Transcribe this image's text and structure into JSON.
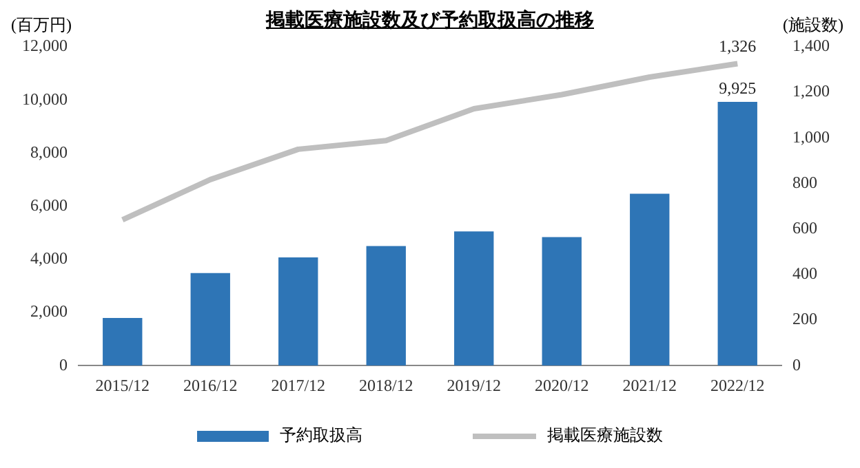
{
  "chart_data": {
    "type": "bar",
    "title": "掲載医療施設数及び予約取扱高の推移",
    "ylabel": "(百万円)",
    "y2label": "(施設数)",
    "categories": [
      "2015/12",
      "2016/12",
      "2017/12",
      "2018/12",
      "2019/12",
      "2020/12",
      "2021/12",
      "2022/12"
    ],
    "series": [
      {
        "name": "予約取扱高",
        "color": "#2e75b6",
        "values": [
          1790,
          3480,
          4070,
          4500,
          5050,
          4840,
          6470,
          9925
        ],
        "value_labels": [
          null,
          null,
          null,
          null,
          null,
          null,
          null,
          "9,925"
        ]
      },
      {
        "name": "掲載医療施設数",
        "type": "line",
        "axis": "y2",
        "color": "#bfbfbf",
        "values": [
          640,
          817,
          950,
          988,
          1128,
          1190,
          1267,
          1326
        ],
        "value_labels": [
          null,
          null,
          null,
          null,
          null,
          null,
          null,
          "1,326"
        ]
      }
    ],
    "ylim": [
      0,
      12000
    ],
    "yticks": [
      0,
      {
        "value": 2000,
        "label": "2,000"
      },
      {
        "value": 4000,
        "label": "4,000"
      },
      {
        "value": 6000,
        "label": "6,000"
      },
      {
        "value": 8000,
        "label": "8,000"
      },
      {
        "value": 10000,
        "label": "10,000"
      },
      {
        "value": 12000,
        "label": "12,000"
      }
    ],
    "y2lim": [
      0,
      1400
    ],
    "y2ticks": [
      0,
      200,
      400,
      600,
      800,
      {
        "value": 1000,
        "label": "1,000"
      },
      {
        "value": 1200,
        "label": "1,200"
      },
      {
        "value": 1400,
        "label": "1,400"
      }
    ],
    "grid": false,
    "legend": "bottom",
    "marker": "none",
    "line_style": "solid"
  }
}
